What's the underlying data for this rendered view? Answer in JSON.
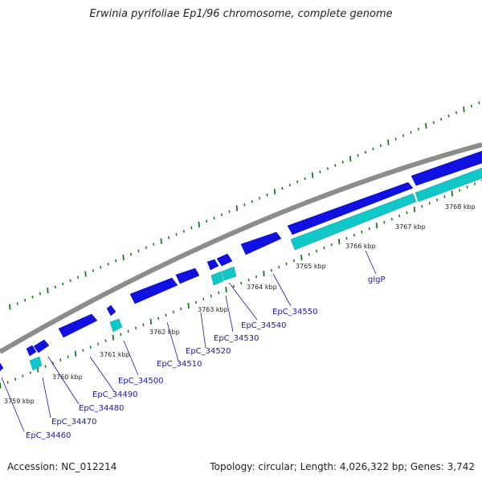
{
  "title": "Erwinia pyrifoliae Ep1/96 chromosome, complete genome",
  "footer": {
    "accession": "Accession: NC_012214",
    "summary": "Topology: circular; Length: 4,026,322 bp; Genes: 3,742"
  },
  "colors": {
    "backbone": "#8c8c8c",
    "forward_gene": "#1010e0",
    "reverse_gene": "#10c8c8",
    "tick": "#1a7a1a",
    "label_line": "#1a1aa6"
  },
  "ticks": [
    "3759 kbp",
    "3760 kbp",
    "3761 kbp",
    "3762 kbp",
    "3763 kbp",
    "3764 kbp",
    "3765 kbp",
    "3766 kbp",
    "3767 kbp",
    "3768 kbp"
  ],
  "genes": [
    "EpC_34460",
    "EpC_34470",
    "EpC_34480",
    "EpC_34490",
    "EpC_34500",
    "EpC_34510",
    "EpC_34520",
    "EpC_34530",
    "EpC_34540",
    "EpC_34550",
    "glgP"
  ]
}
